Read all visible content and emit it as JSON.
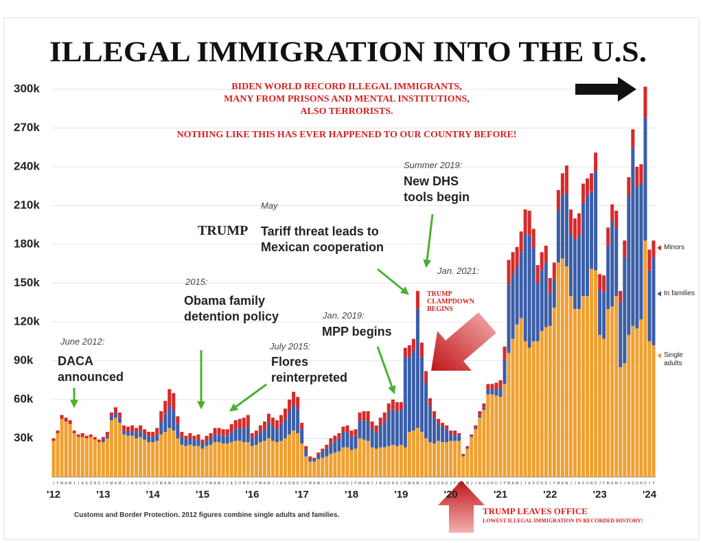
{
  "chart_data": {
    "type": "bar",
    "stacked": true,
    "title": "ILLEGAL IMMIGRATION INTO THE U.S.",
    "subtitle": [
      "BIDEN WORLD RECORD ILLEGAL IMMIGRANTS,",
      "MANY FROM PRISONS AND MENTAL INSTITUTIONS,",
      "ALSO TERRORISTS."
    ],
    "subtitle_2": "NOTHING LIKE THIS HAS EVER HAPPENED TO OUR COUNTRY BEFORE!",
    "note": "Customs and Border Protection. 2012 figures combine single adults and families.",
    "annotations": [
      "June 2012:",
      "DACA announced",
      "2015:",
      "Obama family detention policy",
      "July 2015:",
      "Flores reinterpreted",
      "May",
      "TRUMP",
      "Tariff threat leads to Mexican cooperation",
      "Jan. 2019:",
      "MPP begins",
      "Summer 2019:",
      "New DHS tools begin",
      "Jan. 2021:",
      "TRUMP CLAMPDOWN BEGINS",
      "TRUMP LEAVES OFFICE",
      "LOWEST ILLEGAL IMMIGRATION IN RECORDED HISTORY!"
    ],
    "categories": [
      "J",
      "F",
      "M",
      "A",
      "M",
      "J",
      "J",
      "A",
      "S",
      "O",
      "N",
      "D",
      "J",
      "F",
      "M",
      "A",
      "M",
      "J",
      "J",
      "A",
      "S",
      "O",
      "N",
      "D",
      "J",
      "F",
      "M",
      "A",
      "M",
      "J",
      "J",
      "A",
      "S",
      "O",
      "N",
      "D",
      "J",
      "F",
      "M",
      "A",
      "M",
      "J",
      "J",
      "A",
      "S",
      "O",
      "N",
      "D",
      "J",
      "F",
      "M",
      "A",
      "M",
      "J",
      "J",
      "A",
      "S",
      "O",
      "N",
      "D",
      "J",
      "F",
      "M",
      "A",
      "M",
      "J",
      "J",
      "A",
      "S",
      "O",
      "N",
      "D",
      "J",
      "F",
      "M",
      "A",
      "M",
      "J",
      "J",
      "A",
      "S",
      "O",
      "N",
      "D",
      "J",
      "F",
      "M",
      "A",
      "M",
      "J",
      "J",
      "A",
      "S",
      "O",
      "N",
      "D",
      "J",
      "F",
      "M",
      "A",
      "M",
      "J",
      "J",
      "A",
      "S",
      "O",
      "N",
      "D",
      "J",
      "F",
      "M",
      "A",
      "M",
      "J",
      "J",
      "A",
      "S",
      "O",
      "N",
      "D",
      "J",
      "F",
      "M",
      "A",
      "M",
      "J",
      "J",
      "A",
      "S",
      "O",
      "N",
      "D",
      "J",
      "F",
      "M",
      "A",
      "M",
      "J",
      "J",
      "A",
      "S",
      "O",
      "N",
      "D",
      "J",
      "F"
    ],
    "xticks": [
      {
        "value": 0,
        "label": "'12"
      },
      {
        "value": 12,
        "label": "'13"
      },
      {
        "value": 24,
        "label": "'14"
      },
      {
        "value": 36,
        "label": "'15"
      },
      {
        "value": 48,
        "label": "'16"
      },
      {
        "value": 60,
        "label": "'17"
      },
      {
        "value": 72,
        "label": "'18"
      },
      {
        "value": 84,
        "label": "'19"
      },
      {
        "value": 96,
        "label": "'20"
      },
      {
        "value": 108,
        "label": "'21"
      },
      {
        "value": 120,
        "label": "'22"
      },
      {
        "value": 132,
        "label": "'23"
      },
      {
        "value": 144,
        "label": "'24"
      }
    ],
    "ylim": [
      0,
      310000
    ],
    "yticks": [
      {
        "value": 30000,
        "label": "30k"
      },
      {
        "value": 60000,
        "label": "60k"
      },
      {
        "value": 90000,
        "label": "90k"
      },
      {
        "value": 120000,
        "label": "120k"
      },
      {
        "value": 150000,
        "label": "150k"
      },
      {
        "value": 180000,
        "label": "180k"
      },
      {
        "value": 210000,
        "label": "210k"
      },
      {
        "value": 240000,
        "label": "240k"
      },
      {
        "value": 270000,
        "label": "270k"
      },
      {
        "value": 300000,
        "label": "300k"
      }
    ],
    "grid": true,
    "series": [
      {
        "name": "Single adults",
        "color": "#f0a030",
        "values": [
          28000,
          34000,
          45000,
          43000,
          41000,
          34000,
          31000,
          31000,
          30000,
          31000,
          29000,
          27000,
          27000,
          30000,
          44000,
          46000,
          42000,
          33000,
          32000,
          32000,
          30000,
          31000,
          29000,
          27000,
          27000,
          28000,
          33000,
          35000,
          38000,
          36000,
          30000,
          25000,
          24000,
          25000,
          24000,
          24000,
          22000,
          24000,
          25000,
          27000,
          27000,
          26000,
          26000,
          27000,
          28000,
          28000,
          27000,
          27000,
          24000,
          25000,
          27000,
          28000,
          30000,
          28000,
          27000,
          28000,
          30000,
          33000,
          36000,
          34000,
          26000,
          16000,
          12000,
          12000,
          14000,
          15000,
          16000,
          18000,
          19000,
          20000,
          23000,
          23000,
          21000,
          22000,
          30000,
          29000,
          28000,
          23000,
          22000,
          23000,
          23000,
          24000,
          25000,
          24000,
          25000,
          23000,
          35000,
          36000,
          38000,
          35000,
          30000,
          27000,
          26000,
          28000,
          27000,
          27000,
          28000,
          28000,
          28000,
          16000,
          22000,
          31000,
          37000,
          46000,
          52000,
          64000,
          64000,
          63000,
          62000,
          72000,
          96000,
          107000,
          118000,
          123000,
          105000,
          100000,
          105000,
          105000,
          113000,
          116000,
          117000,
          131000,
          166000,
          169000,
          163000,
          140000,
          130000,
          130000,
          140000,
          140000,
          161000,
          160000,
          110000,
          107000,
          130000,
          132000,
          140000,
          85000,
          88000,
          110000,
          117000,
          115000,
          122000,
          183000,
          105000,
          102000
        ]
      },
      {
        "name": "In families",
        "color": "#3a5ea8",
        "values": [
          0,
          0,
          0,
          0,
          0,
          0,
          0,
          0,
          0,
          0,
          0,
          0,
          2000,
          2000,
          3000,
          4000,
          4000,
          3000,
          3000,
          4000,
          4000,
          5000,
          4000,
          4000,
          4000,
          5000,
          10000,
          14000,
          17000,
          16000,
          11000,
          6000,
          5000,
          5000,
          5000,
          5000,
          4000,
          4000,
          5000,
          6000,
          6000,
          6000,
          6000,
          8000,
          9000,
          10000,
          11000,
          12000,
          6000,
          7000,
          8000,
          9000,
          12000,
          11000,
          10000,
          13000,
          15000,
          18000,
          20000,
          19000,
          11000,
          5000,
          2000,
          2000,
          3000,
          5000,
          6000,
          8000,
          9000,
          10000,
          12000,
          12000,
          10000,
          10000,
          14000,
          15000,
          15000,
          14000,
          13000,
          17000,
          20000,
          26000,
          28000,
          27000,
          27000,
          70000,
          58000,
          62000,
          92000,
          58000,
          43000,
          28000,
          20000,
          13000,
          12000,
          10000,
          5000,
          5000,
          4000,
          1000,
          1000,
          1000,
          1000,
          2000,
          2000,
          4000,
          4000,
          5000,
          7000,
          19000,
          53000,
          50000,
          45000,
          51000,
          83000,
          87000,
          72000,
          45000,
          47000,
          50000,
          25000,
          22000,
          41000,
          49000,
          57000,
          48000,
          53000,
          57000,
          72000,
          78000,
          60000,
          77000,
          35000,
          36000,
          49000,
          66000,
          53000,
          50000,
          82000,
          108000,
          138000,
          110000,
          105000,
          95000,
          55000,
          68000
        ]
      },
      {
        "name": "Minors",
        "color": "#d62a2a",
        "values": [
          2000,
          2000,
          3000,
          3000,
          3000,
          2000,
          2000,
          3000,
          2000,
          2000,
          2000,
          2000,
          2000,
          3000,
          3000,
          4000,
          4000,
          4000,
          4000,
          4000,
          4000,
          4000,
          4000,
          4000,
          4000,
          5000,
          8000,
          10000,
          13000,
          13000,
          6000,
          4000,
          3000,
          4000,
          3000,
          4000,
          3000,
          4000,
          4000,
          5000,
          5000,
          5000,
          5000,
          6000,
          7000,
          7000,
          8000,
          9000,
          4000,
          4000,
          5000,
          6000,
          7000,
          7000,
          7000,
          7000,
          8000,
          9000,
          10000,
          9000,
          5000,
          3000,
          2000,
          1000,
          2000,
          2000,
          3000,
          4000,
          4000,
          4000,
          4000,
          5000,
          5000,
          5000,
          6000,
          7000,
          8000,
          6000,
          5000,
          6000,
          7000,
          7000,
          7000,
          7000,
          6000,
          7000,
          9000,
          9000,
          14000,
          11000,
          9000,
          6000,
          5000,
          4000,
          3000,
          3000,
          3000,
          3000,
          2000,
          1000,
          1000,
          1000,
          2000,
          3000,
          3000,
          4000,
          4000,
          5000,
          6000,
          10000,
          19000,
          17000,
          15000,
          16000,
          19000,
          19000,
          15000,
          14000,
          14000,
          13000,
          12000,
          13000,
          15000,
          17000,
          21000,
          19000,
          17000,
          17000,
          15000,
          13000,
          14000,
          14000,
          12000,
          13000,
          14000,
          13000,
          13000,
          9000,
          13000,
          14000,
          14000,
          15000,
          15000,
          24000,
          16000,
          13000
        ]
      }
    ]
  }
}
